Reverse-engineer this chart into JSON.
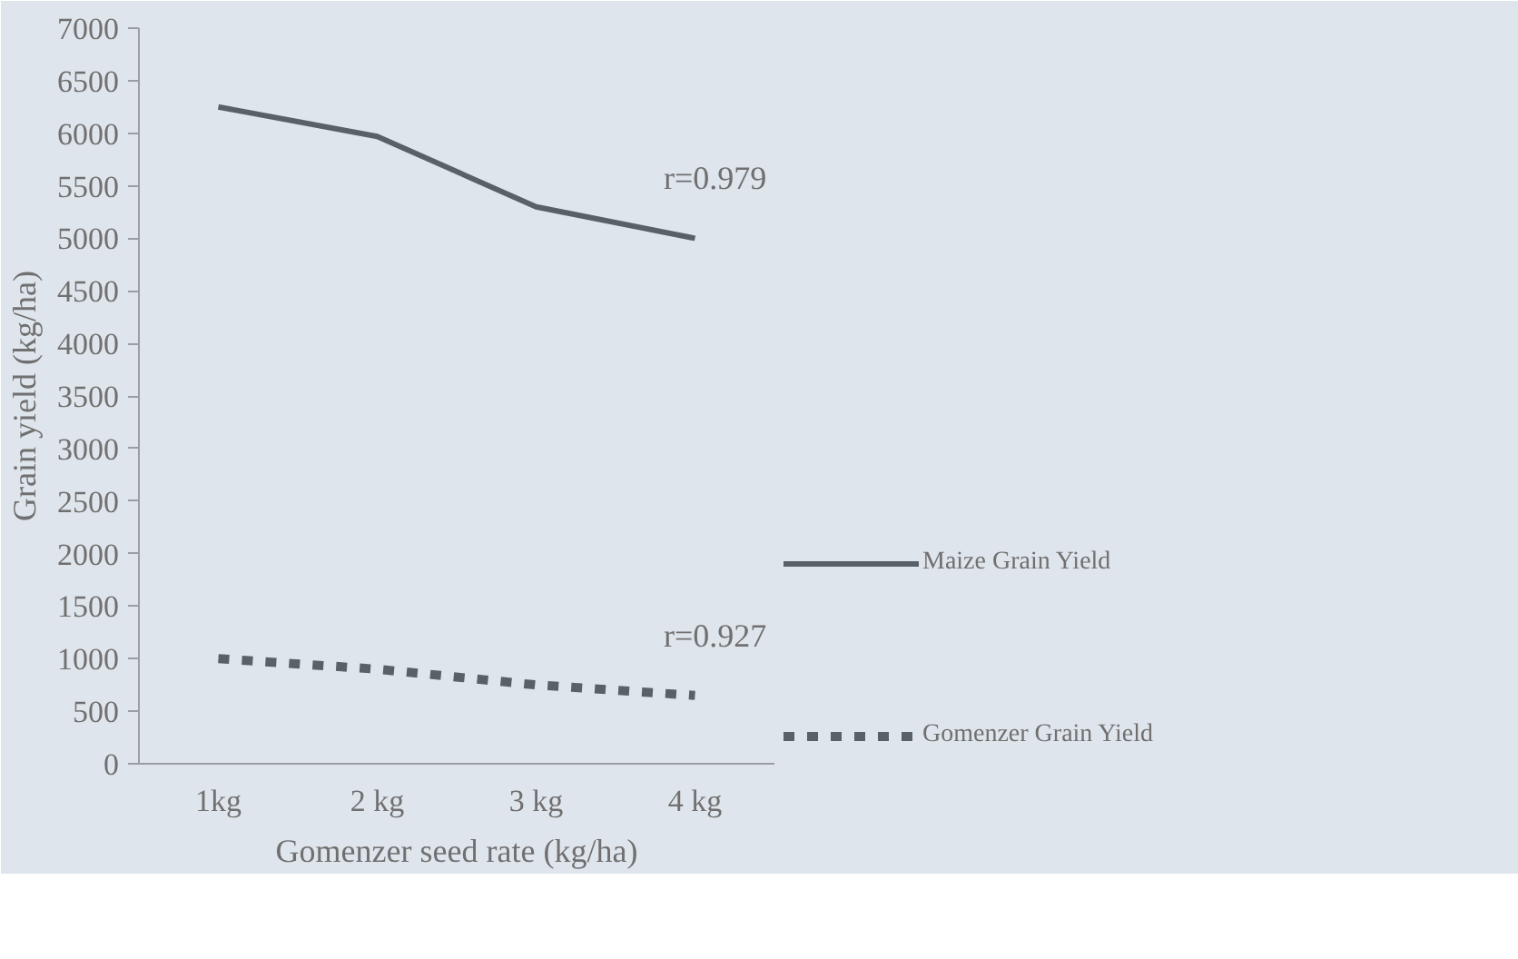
{
  "chart_data": {
    "type": "line",
    "xlabel": "Gomenzer seed rate (kg/ha)",
    "ylabel": "Grain yield (kg/ha)",
    "categories": [
      "1kg",
      "2 kg",
      "3 kg",
      "4 kg"
    ],
    "series": [
      {
        "name": "Maize Grain Yield",
        "color": "#5a6068",
        "values": [
          6250,
          5970,
          5300,
          5000
        ],
        "line_style": "solid"
      },
      {
        "name": "Gomenzer Grain Yield",
        "color": "#5a6068",
        "values": [
          1000,
          900,
          750,
          650
        ],
        "line_style": "dotted"
      }
    ],
    "annotations": [
      "r=0.979",
      "r=0.927"
    ],
    "ylim": [
      0,
      7000
    ],
    "yticks": [
      0,
      500,
      1000,
      1500,
      2000,
      2500,
      3000,
      3500,
      4000,
      4500,
      5000,
      5500,
      6000,
      6500,
      7000
    ],
    "grid": false,
    "legend": "right",
    "marker": "none"
  }
}
